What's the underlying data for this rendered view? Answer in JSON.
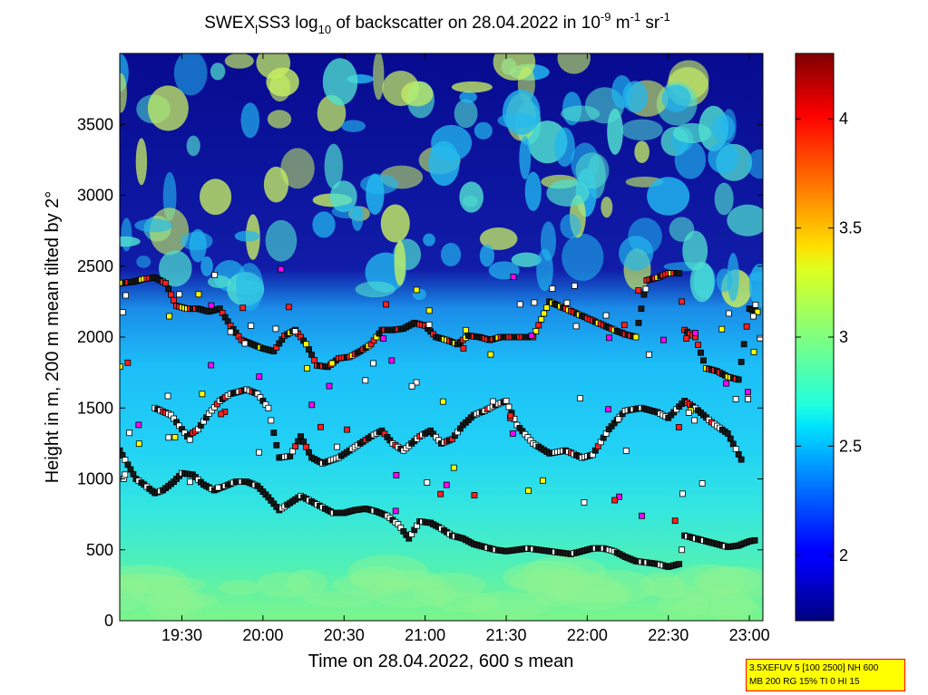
{
  "chart_data": {
    "type": "heatmap",
    "title": {
      "prefix": "SWEX",
      "sub1": "l",
      "part2": "SS3 log",
      "sub2": "10",
      "part3": " of backscatter on 28.04.2022 in 10",
      "sup1": "-9",
      "part4": " m",
      "sup2": "-1",
      "part5": " sr",
      "sup3": "-1"
    },
    "xlabel": "Time on 28.04.2022, 600 s mean",
    "ylabel": "Height in m, 200 m mean tilted by 2°",
    "x_ticks": [
      "19:30",
      "20:00",
      "20:30",
      "21:00",
      "21:30",
      "22:00",
      "22:30",
      "23:00"
    ],
    "x_tick_minutes": [
      1170,
      1200,
      1230,
      1260,
      1290,
      1320,
      1350,
      1380
    ],
    "xlim_minutes": [
      1147,
      1385
    ],
    "y_ticks": [
      0,
      500,
      1000,
      1500,
      2000,
      2500,
      3000,
      3500
    ],
    "ylim": [
      0,
      4000
    ],
    "colorbar": {
      "ticks": [
        2,
        2.5,
        3,
        3.5,
        4
      ],
      "tick_labels": [
        "2",
        "2.5",
        "3",
        "3.5",
        "4"
      ],
      "range": [
        1.7,
        4.3
      ],
      "colormap": "jet"
    },
    "layers": [
      {
        "name": "mixing-layer",
        "points": [
          [
            1147,
            1200
          ],
          [
            1150,
            1100
          ],
          [
            1153,
            1000
          ],
          [
            1156,
            960
          ],
          [
            1160,
            900
          ],
          [
            1163,
            920
          ],
          [
            1167,
            980
          ],
          [
            1170,
            1040
          ],
          [
            1174,
            1030
          ],
          [
            1178,
            960
          ],
          [
            1182,
            920
          ],
          [
            1186,
            950
          ],
          [
            1190,
            980
          ],
          [
            1194,
            980
          ],
          [
            1198,
            950
          ],
          [
            1202,
            870
          ],
          [
            1206,
            780
          ],
          [
            1210,
            830
          ],
          [
            1214,
            880
          ],
          [
            1218,
            840
          ],
          [
            1222,
            800
          ],
          [
            1226,
            760
          ],
          [
            1230,
            760
          ],
          [
            1234,
            780
          ],
          [
            1238,
            790
          ],
          [
            1242,
            770
          ],
          [
            1246,
            740
          ],
          [
            1250,
            680
          ],
          [
            1254,
            580
          ],
          [
            1258,
            700
          ],
          [
            1262,
            690
          ],
          [
            1266,
            650
          ],
          [
            1270,
            600
          ],
          [
            1274,
            580
          ],
          [
            1278,
            540
          ],
          [
            1282,
            520
          ],
          [
            1286,
            500
          ],
          [
            1290,
            490
          ],
          [
            1294,
            500
          ],
          [
            1298,
            510
          ],
          [
            1302,
            500
          ],
          [
            1306,
            490
          ],
          [
            1310,
            480
          ],
          [
            1314,
            470
          ],
          [
            1318,
            490
          ],
          [
            1322,
            510
          ],
          [
            1326,
            510
          ],
          [
            1330,
            490
          ],
          [
            1334,
            450
          ],
          [
            1338,
            420
          ],
          [
            1342,
            410
          ],
          [
            1346,
            400
          ],
          [
            1350,
            380
          ],
          [
            1354,
            400
          ],
          [
            1356,
            600
          ],
          [
            1360,
            580
          ],
          [
            1364,
            560
          ],
          [
            1368,
            540
          ],
          [
            1372,
            520
          ],
          [
            1376,
            530
          ],
          [
            1380,
            560
          ],
          [
            1383,
            570
          ]
        ]
      },
      {
        "name": "residual-layer-low",
        "points": [
          [
            1160,
            1500
          ],
          [
            1166,
            1450
          ],
          [
            1172,
            1300
          ],
          [
            1176,
            1350
          ],
          [
            1180,
            1460
          ],
          [
            1184,
            1550
          ],
          [
            1188,
            1600
          ],
          [
            1194,
            1630
          ],
          [
            1198,
            1600
          ],
          [
            1202,
            1500
          ],
          [
            1206,
            1150
          ],
          [
            1210,
            1160
          ],
          [
            1214,
            1300
          ],
          [
            1218,
            1150
          ],
          [
            1222,
            1110
          ],
          [
            1228,
            1150
          ],
          [
            1232,
            1200
          ],
          [
            1236,
            1250
          ],
          [
            1240,
            1300
          ],
          [
            1244,
            1340
          ],
          [
            1248,
            1250
          ],
          [
            1252,
            1200
          ],
          [
            1258,
            1300
          ],
          [
            1262,
            1340
          ],
          [
            1266,
            1250
          ],
          [
            1270,
            1280
          ],
          [
            1274,
            1380
          ],
          [
            1278,
            1450
          ],
          [
            1282,
            1480
          ],
          [
            1286,
            1520
          ],
          [
            1290,
            1550
          ],
          [
            1294,
            1380
          ],
          [
            1300,
            1250
          ],
          [
            1306,
            1180
          ],
          [
            1312,
            1200
          ],
          [
            1318,
            1150
          ],
          [
            1322,
            1170
          ],
          [
            1328,
            1350
          ],
          [
            1334,
            1480
          ],
          [
            1340,
            1500
          ],
          [
            1346,
            1470
          ],
          [
            1350,
            1430
          ],
          [
            1356,
            1550
          ],
          [
            1360,
            1500
          ],
          [
            1366,
            1400
          ],
          [
            1372,
            1320
          ],
          [
            1378,
            1100
          ]
        ]
      },
      {
        "name": "residual-layer-high",
        "points": [
          [
            1147,
            2380
          ],
          [
            1152,
            2390
          ],
          [
            1156,
            2410
          ],
          [
            1160,
            2420
          ],
          [
            1164,
            2380
          ],
          [
            1168,
            2220
          ],
          [
            1172,
            2200
          ],
          [
            1176,
            2200
          ],
          [
            1180,
            2180
          ],
          [
            1184,
            2200
          ],
          [
            1188,
            2080
          ],
          [
            1192,
            1980
          ],
          [
            1196,
            1950
          ],
          [
            1200,
            1920
          ],
          [
            1204,
            1900
          ],
          [
            1208,
            2010
          ],
          [
            1212,
            2050
          ],
          [
            1216,
            1950
          ],
          [
            1220,
            1800
          ],
          [
            1224,
            1790
          ],
          [
            1228,
            1850
          ],
          [
            1232,
            1860
          ],
          [
            1236,
            1900
          ],
          [
            1240,
            1950
          ],
          [
            1244,
            2050
          ],
          [
            1248,
            2050
          ],
          [
            1252,
            2060
          ],
          [
            1256,
            2100
          ],
          [
            1260,
            2080
          ],
          [
            1264,
            2000
          ],
          [
            1268,
            1980
          ],
          [
            1272,
            1950
          ],
          [
            1276,
            2010
          ],
          [
            1280,
            2000
          ],
          [
            1284,
            1980
          ],
          [
            1288,
            2000
          ],
          [
            1300,
            2000
          ],
          [
            1306,
            2250
          ],
          [
            1312,
            2200
          ],
          [
            1318,
            2150
          ],
          [
            1324,
            2100
          ],
          [
            1330,
            2050
          ],
          [
            1334,
            2020
          ],
          [
            1338,
            2000
          ],
          [
            1342,
            2400
          ],
          [
            1346,
            2420
          ],
          [
            1350,
            2450
          ],
          [
            1354,
            2450
          ],
          [
            1356,
            2050
          ],
          [
            1360,
            2000
          ],
          [
            1364,
            1780
          ],
          [
            1368,
            1760
          ],
          [
            1372,
            1720
          ],
          [
            1376,
            1700
          ],
          [
            1380,
            2200
          ],
          [
            1384,
            2170
          ]
        ]
      }
    ]
  }
}
